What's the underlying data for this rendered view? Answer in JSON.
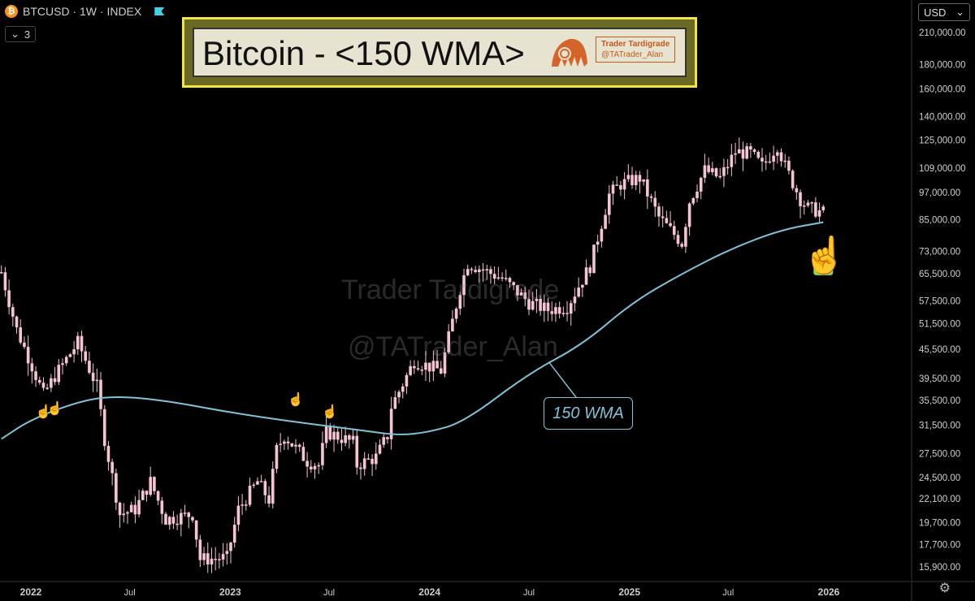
{
  "header": {
    "coin_glyph": "₿",
    "symbol": "BTCUSD · 1W · INDEX",
    "indicator_toggle": "3",
    "currency": "USD"
  },
  "title_box": {
    "title": "Bitcoin - <150 WMA>",
    "brand_line1": "Trader Tardigrade",
    "brand_line2": "@TATrader_Alan"
  },
  "watermark": {
    "line1": "Trader Tardigrade",
    "line2": "@TATrader_Alan"
  },
  "settings_icon": "gear-icon",
  "colors": {
    "candle": "#f6c4d4",
    "wma": "#7fc3d8",
    "background": "#000000",
    "highlight_hand": "#7ee05a",
    "signal_hand": "#3d55e8"
  },
  "chart_data": {
    "type": "candlestick",
    "title": "Bitcoin - <150 WMA>",
    "timeframe": "1W",
    "y_scale": "log",
    "x_range": [
      "2021-11-08",
      "2025-12-22"
    ],
    "y_ticks": [
      15900,
      17700,
      19700,
      22100,
      24500,
      27500,
      31500,
      35500,
      39500,
      45500,
      51500,
      57500,
      65500,
      73000,
      85000,
      97000,
      109000,
      125000,
      140000,
      160000,
      180000,
      210000
    ],
    "y_tick_labels": [
      "15,900.00",
      "17,700.00",
      "19,700.00",
      "22,100.00",
      "24,500.00",
      "27,500.00",
      "31,500.00",
      "35,500.00",
      "39,500.00",
      "45,500.00",
      "51,500.00",
      "57,500.00",
      "65,500.00",
      "73,000.00",
      "85,000.00",
      "97,000.00",
      "109,000.00",
      "125,000.00",
      "140,000.00",
      "160,000.00",
      "180,000.00",
      "210,000.00"
    ],
    "x_ticks": [
      "2022-01-01",
      "2022-07-01",
      "2023-01-01",
      "2023-07-01",
      "2024-01-01",
      "2024-07-01",
      "2025-01-01",
      "2025-07-01",
      "2026-01-01"
    ],
    "x_tick_labels": [
      "2022",
      "Jul",
      "2023",
      "Jul",
      "2024",
      "Jul",
      "2025",
      "Jul",
      "2026"
    ],
    "price_path": [
      [
        "2021-11-08",
        66000
      ],
      [
        "2021-12-06",
        50000
      ],
      [
        "2022-01-03",
        42000
      ],
      [
        "2022-01-24",
        36500
      ],
      [
        "2022-02-14",
        40000
      ],
      [
        "2022-03-28",
        47000
      ],
      [
        "2022-05-02",
        38000
      ],
      [
        "2022-05-16",
        29500
      ],
      [
        "2022-06-13",
        20500
      ],
      [
        "2022-07-11",
        21000
      ],
      [
        "2022-08-08",
        24000
      ],
      [
        "2022-09-05",
        20000
      ],
      [
        "2022-10-24",
        20500
      ],
      [
        "2022-11-07",
        16500
      ],
      [
        "2022-12-26",
        16600
      ],
      [
        "2023-01-16",
        21000
      ],
      [
        "2023-02-20",
        24000
      ],
      [
        "2023-03-13",
        22000
      ],
      [
        "2023-03-27",
        28000
      ],
      [
        "2023-04-10",
        30000
      ],
      [
        "2023-05-22",
        26500
      ],
      [
        "2023-06-12",
        26000
      ],
      [
        "2023-06-26",
        30500
      ],
      [
        "2023-08-14",
        29000
      ],
      [
        "2023-08-21",
        26000
      ],
      [
        "2023-09-25",
        27000
      ],
      [
        "2023-10-16",
        30000
      ],
      [
        "2023-10-23",
        34500
      ],
      [
        "2023-12-04",
        43000
      ],
      [
        "2024-01-22",
        41000
      ],
      [
        "2024-02-26",
        61000
      ],
      [
        "2024-03-11",
        69000
      ],
      [
        "2024-05-13",
        64000
      ],
      [
        "2024-07-01",
        57000
      ],
      [
        "2024-08-05",
        55000
      ],
      [
        "2024-09-09",
        56000
      ],
      [
        "2024-10-21",
        68000
      ],
      [
        "2024-11-04",
        78000
      ],
      [
        "2024-11-25",
        96000
      ],
      [
        "2024-12-16",
        101000
      ],
      [
        "2025-01-20",
        104000
      ],
      [
        "2025-02-24",
        86000
      ],
      [
        "2025-04-07",
        76000
      ],
      [
        "2025-04-21",
        93000
      ],
      [
        "2025-05-19",
        108000
      ],
      [
        "2025-06-16",
        104000
      ],
      [
        "2025-07-14",
        118000
      ],
      [
        "2025-08-11",
        117000
      ],
      [
        "2025-09-01",
        110000
      ],
      [
        "2025-09-29",
        122000
      ],
      [
        "2025-10-13",
        110000
      ],
      [
        "2025-11-10",
        94000
      ],
      [
        "2025-11-24",
        90000
      ],
      [
        "2025-12-22",
        88000
      ]
    ],
    "series": [
      {
        "name": "150 WMA",
        "points": [
          [
            "2021-11-08",
            29500
          ],
          [
            "2022-01-03",
            32500
          ],
          [
            "2022-04-04",
            35500
          ],
          [
            "2022-06-06",
            36300
          ],
          [
            "2022-09-05",
            35500
          ],
          [
            "2023-01-02",
            33500
          ],
          [
            "2023-05-01",
            32000
          ],
          [
            "2023-09-04",
            30700
          ],
          [
            "2023-11-06",
            30000
          ],
          [
            "2024-01-01",
            30500
          ],
          [
            "2024-03-04",
            32000
          ],
          [
            "2024-07-01",
            40500
          ],
          [
            "2024-10-07",
            46500
          ],
          [
            "2025-01-06",
            57000
          ],
          [
            "2025-04-07",
            65500
          ],
          [
            "2025-07-07",
            74000
          ],
          [
            "2025-10-06",
            81000
          ],
          [
            "2025-12-22",
            84000
          ]
        ]
      }
    ],
    "annotations": [
      {
        "type": "label",
        "text": "150 WMA",
        "date": "2024-08-12",
        "value": 41500
      },
      {
        "type": "signal-hand",
        "date": "2022-01-24",
        "value": 33000
      },
      {
        "type": "signal-hand",
        "date": "2022-02-14",
        "value": 33500
      },
      {
        "type": "signal-hand",
        "date": "2023-05-01",
        "value": 35000
      },
      {
        "type": "signal-hand",
        "date": "2023-07-03",
        "value": 33000
      },
      {
        "type": "highlight-hand",
        "date": "2025-12-22",
        "value": 72000
      }
    ],
    "grid": false,
    "legend": "none"
  }
}
